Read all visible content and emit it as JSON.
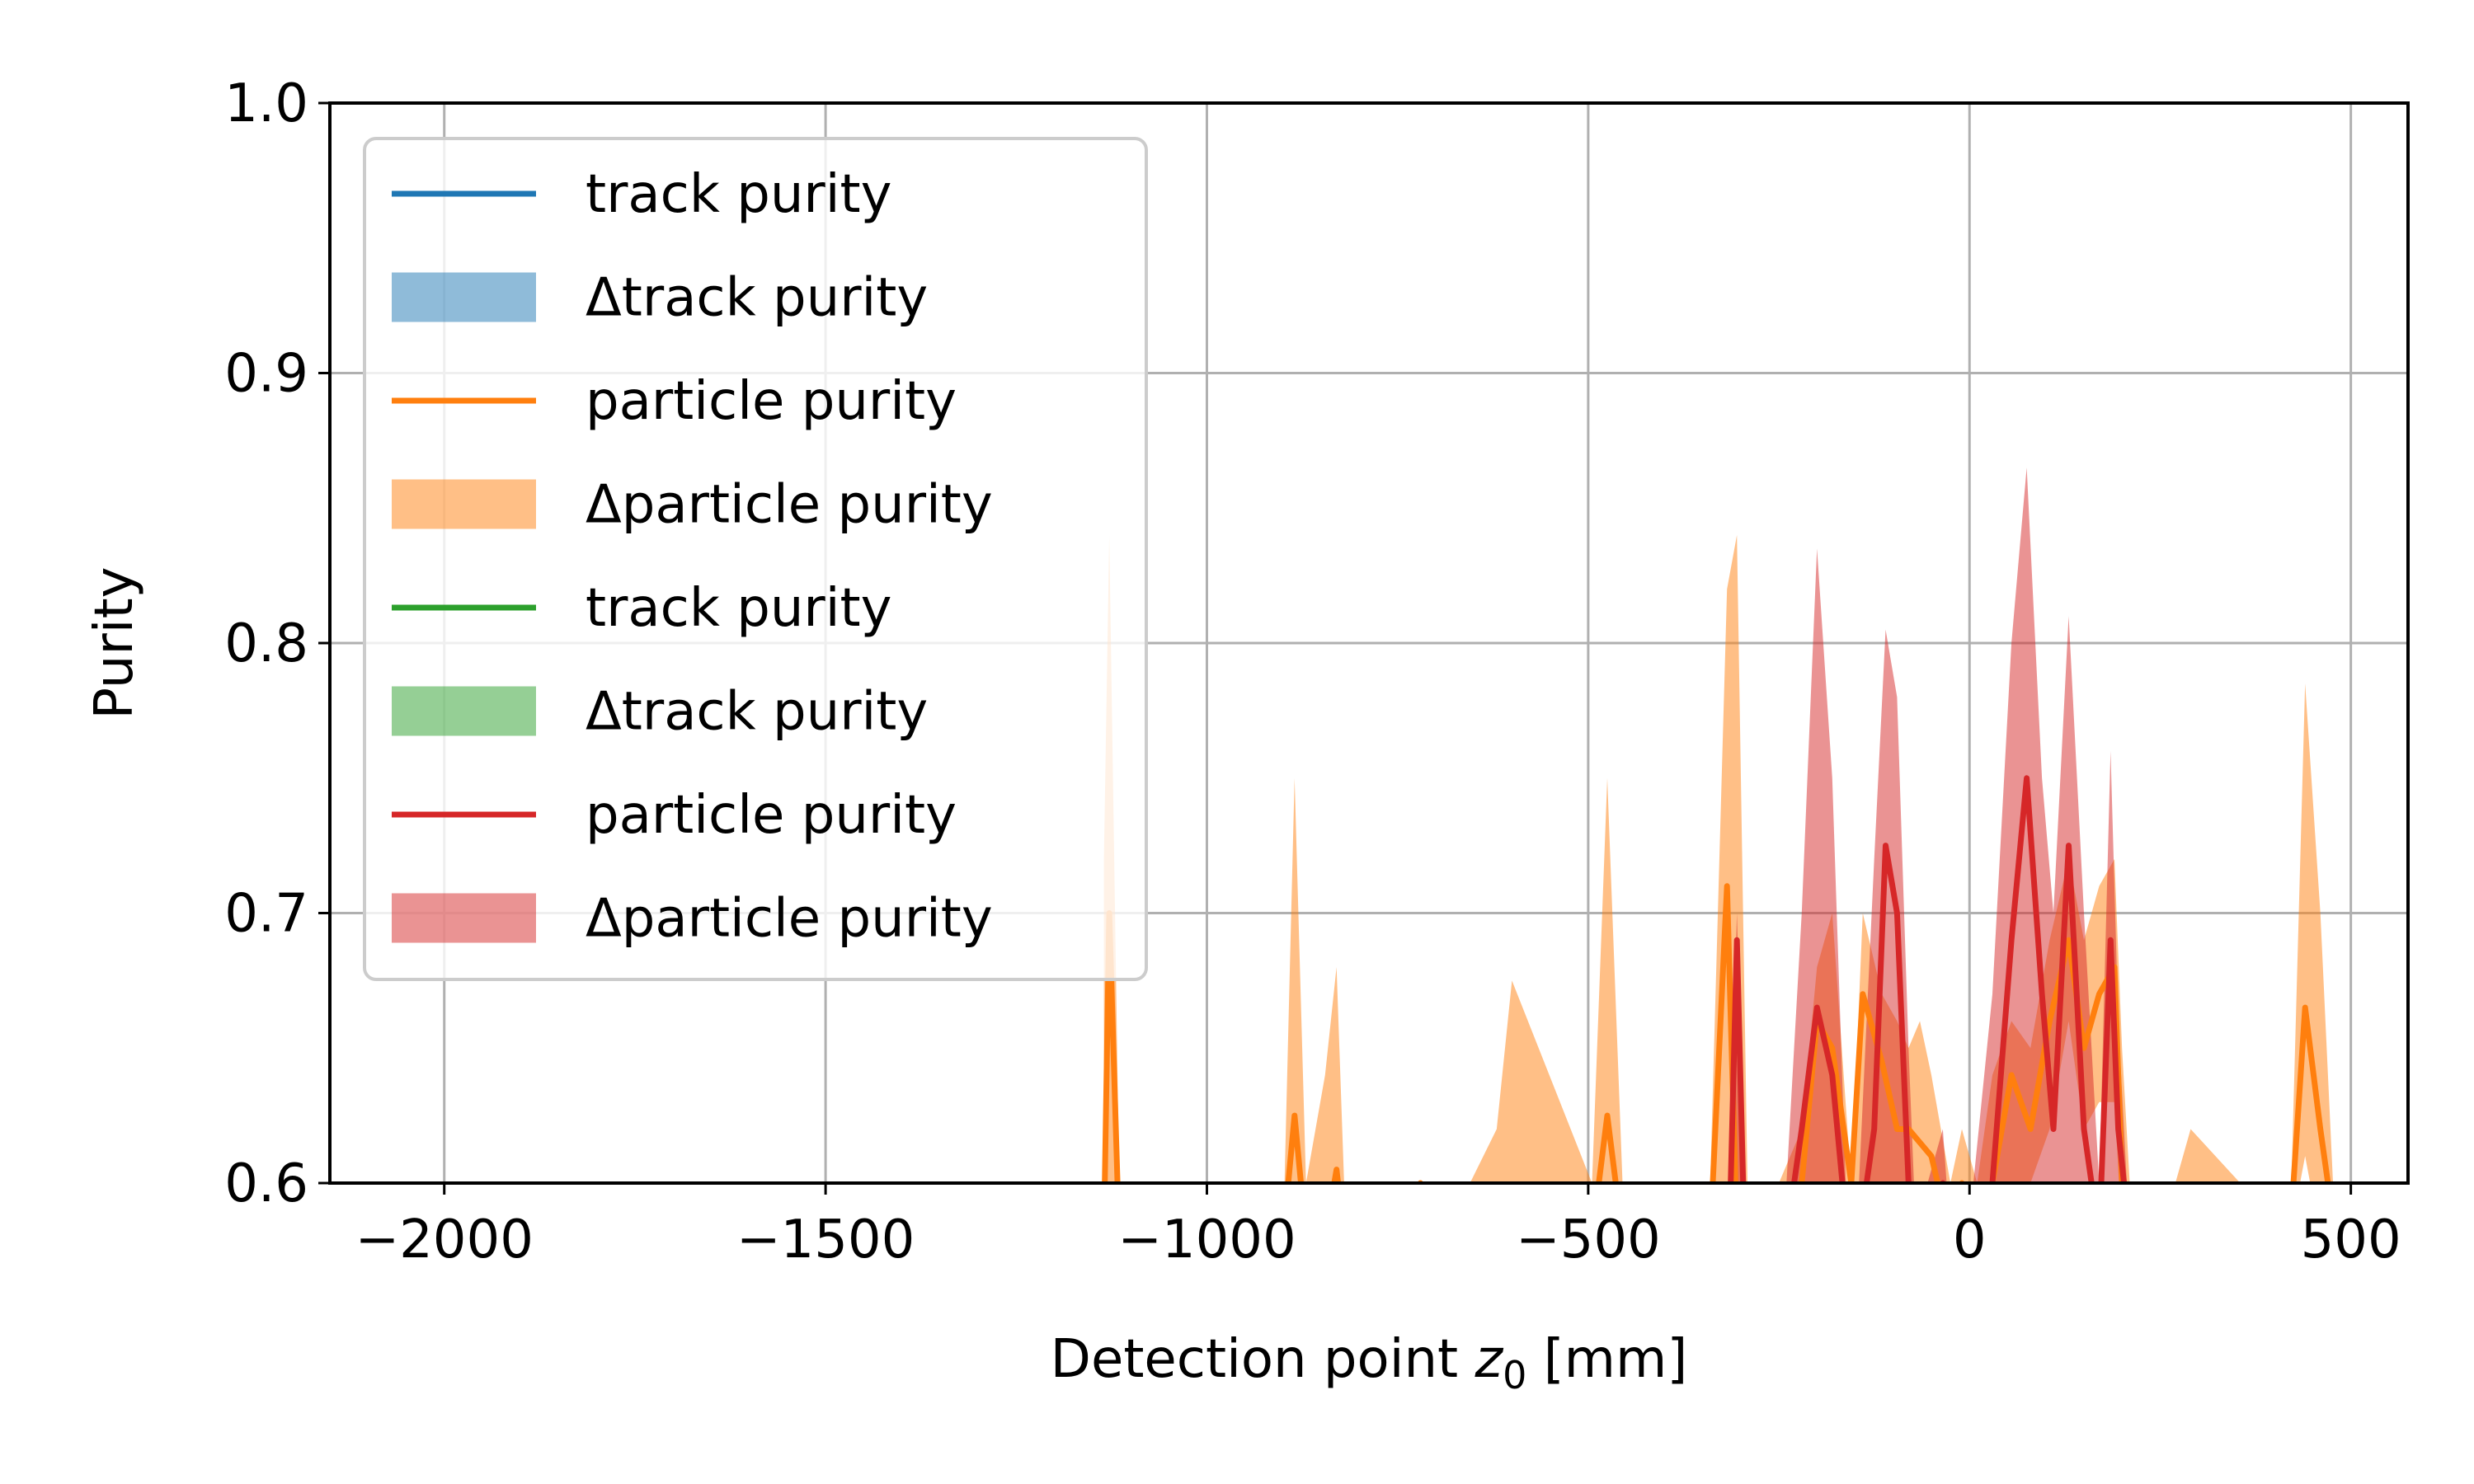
{
  "chart_data": {
    "type": "line",
    "title": "",
    "xlabel_main": "Detection point ",
    "xlabel_var": "z",
    "xlabel_sub": "0",
    "xlabel_unit": " [mm]",
    "ylabel": "Purity",
    "xlim": [
      -2150,
      575
    ],
    "ylim": [
      0.6,
      1.0
    ],
    "x_ticks": [
      -2000,
      -1500,
      -1000,
      -500,
      0,
      500
    ],
    "x_tick_labels": [
      "−2000",
      "−1500",
      "−1000",
      "−500",
      "0",
      "500"
    ],
    "y_ticks": [
      0.6,
      0.7,
      0.8,
      0.9,
      1.0
    ],
    "y_tick_labels": [
      "0.6",
      "0.7",
      "0.8",
      "0.9",
      "1.0"
    ],
    "grid": true,
    "legend_position": "top-left",
    "colors": {
      "blue": "#1f77b4",
      "orange": "#ff7f0e",
      "green": "#2ca02c",
      "red": "#d62728"
    },
    "legend": [
      {
        "label": "track purity",
        "kind": "line",
        "color": "#1f77b4"
      },
      {
        "label": "Δtrack purity",
        "kind": "band",
        "color": "#1f77b4"
      },
      {
        "label": "particle purity",
        "kind": "line",
        "color": "#ff7f0e"
      },
      {
        "label": "Δparticle purity",
        "kind": "band",
        "color": "#ff7f0e"
      },
      {
        "label": "track purity",
        "kind": "line",
        "color": "#2ca02c"
      },
      {
        "label": "Δtrack purity",
        "kind": "band",
        "color": "#2ca02c"
      },
      {
        "label": "particle purity",
        "kind": "line",
        "color": "#d62728"
      },
      {
        "label": "Δparticle purity",
        "kind": "band",
        "color": "#d62728"
      }
    ],
    "series": [
      {
        "color": "#ff7f0e",
        "x": [
          -1135,
          -1128,
          -1115,
          -1080,
          -900,
          -885,
          -870,
          -845,
          -830,
          -820,
          -795,
          -720,
          -690,
          -620,
          -600,
          -495,
          -475,
          -455,
          -340,
          -318,
          -305,
          -290,
          -280,
          -250,
          -220,
          -200,
          -180,
          -155,
          -140,
          -115,
          -95,
          -80,
          -65,
          -50,
          -25,
          -10,
          10,
          30,
          55,
          80,
          105,
          130,
          150,
          170,
          190,
          200,
          210,
          250,
          290,
          420,
          440,
          460,
          480,
          520,
          540
        ],
        "y": [
          0.58,
          0.7,
          0.58,
          0.58,
          0.58,
          0.625,
          0.58,
          0.58,
          0.605,
          0.58,
          0.58,
          0.6,
          0.58,
          0.58,
          0.58,
          0.58,
          0.625,
          0.58,
          0.58,
          0.71,
          0.58,
          0.58,
          0.58,
          0.58,
          0.6,
          0.66,
          0.65,
          0.6,
          0.67,
          0.645,
          0.62,
          0.62,
          0.615,
          0.61,
          0.58,
          0.6,
          0.58,
          0.6,
          0.64,
          0.62,
          0.66,
          0.69,
          0.65,
          0.67,
          0.68,
          0.6,
          0.58,
          0.58,
          0.58,
          0.58,
          0.665,
          0.62,
          0.58,
          0.58,
          0.6
        ],
        "lower": [
          0.58,
          0.58,
          0.58,
          0.58,
          0.58,
          0.58,
          0.58,
          0.58,
          0.58,
          0.58,
          0.58,
          0.58,
          0.58,
          0.58,
          0.58,
          0.58,
          0.58,
          0.58,
          0.58,
          0.6,
          0.58,
          0.58,
          0.58,
          0.58,
          0.58,
          0.58,
          0.58,
          0.58,
          0.6,
          0.6,
          0.58,
          0.6,
          0.58,
          0.58,
          0.58,
          0.58,
          0.58,
          0.58,
          0.6,
          0.6,
          0.62,
          0.66,
          0.62,
          0.63,
          0.63,
          0.58,
          0.58,
          0.58,
          0.58,
          0.58,
          0.61,
          0.58,
          0.58,
          0.58,
          0.58
        ],
        "upper": [
          0.72,
          0.84,
          0.6,
          0.58,
          0.58,
          0.75,
          0.6,
          0.64,
          0.68,
          0.6,
          0.58,
          0.6,
          0.58,
          0.62,
          0.675,
          0.6,
          0.75,
          0.6,
          0.6,
          0.82,
          0.84,
          0.58,
          0.58,
          0.6,
          0.62,
          0.68,
          0.7,
          0.6,
          0.7,
          0.67,
          0.66,
          0.65,
          0.66,
          0.64,
          0.6,
          0.62,
          0.6,
          0.64,
          0.66,
          0.65,
          0.69,
          0.72,
          0.69,
          0.71,
          0.72,
          0.65,
          0.6,
          0.58,
          0.62,
          0.58,
          0.785,
          0.7,
          0.58,
          0.58,
          0.6
        ]
      },
      {
        "color": "#d62728",
        "x": [
          -315,
          -305,
          -295,
          -260,
          -240,
          -220,
          -200,
          -180,
          -160,
          -145,
          -125,
          -110,
          -95,
          -80,
          -70,
          -55,
          -35,
          -25,
          -15,
          -5,
          5,
          30,
          55,
          75,
          95,
          110,
          130,
          150,
          170,
          185,
          195,
          210
        ],
        "y": [
          0.58,
          0.69,
          0.58,
          0.58,
          0.58,
          0.62,
          0.665,
          0.64,
          0.58,
          0.58,
          0.62,
          0.725,
          0.7,
          0.6,
          0.58,
          0.58,
          0.6,
          0.58,
          0.58,
          0.58,
          0.58,
          0.6,
          0.69,
          0.75,
          0.67,
          0.62,
          0.725,
          0.62,
          0.58,
          0.69,
          0.62,
          0.58
        ],
        "lower": [
          0.58,
          0.58,
          0.58,
          0.58,
          0.58,
          0.58,
          0.58,
          0.58,
          0.58,
          0.58,
          0.58,
          0.58,
          0.58,
          0.58,
          0.58,
          0.58,
          0.58,
          0.58,
          0.58,
          0.58,
          0.58,
          0.58,
          0.58,
          0.6,
          0.58,
          0.58,
          0.58,
          0.58,
          0.58,
          0.58,
          0.58,
          0.58
        ],
        "upper": [
          0.6,
          0.7,
          0.6,
          0.58,
          0.6,
          0.7,
          0.835,
          0.75,
          0.58,
          0.6,
          0.72,
          0.805,
          0.78,
          0.65,
          0.58,
          0.6,
          0.62,
          0.58,
          0.58,
          0.6,
          0.6,
          0.67,
          0.8,
          0.865,
          0.75,
          0.7,
          0.81,
          0.7,
          0.6,
          0.76,
          0.66,
          0.58
        ]
      }
    ]
  }
}
